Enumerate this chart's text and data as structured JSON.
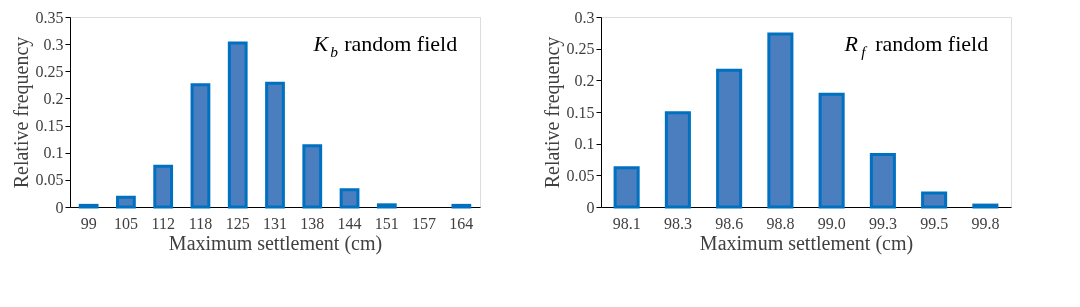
{
  "chart_data": [
    {
      "type": "bar",
      "categories": [
        "99",
        "105",
        "112",
        "118",
        "125",
        "131",
        "138",
        "144",
        "151",
        "157",
        "164"
      ],
      "values": [
        0.003,
        0.018,
        0.075,
        0.225,
        0.302,
        0.228,
        0.113,
        0.032,
        0.004,
        0.0,
        0.003
      ],
      "color": "#4a7ebf",
      "xlabel": "Maximum settlement (cm)",
      "ylabel": "Relative frequency",
      "ylim": [
        0,
        0.35
      ],
      "yticks": [
        {
          "value": 0,
          "label": "0"
        },
        0.05,
        0.1,
        0.15,
        0.2,
        0.25,
        0.3,
        0.35
      ],
      "grid": false,
      "annotations": [
        "K$_{b}$ random field"
      ]
    },
    {
      "type": "bar",
      "categories": [
        "98.1",
        "98.3",
        "98.6",
        "98.8",
        "99.0",
        "99.3",
        "99.5",
        "99.8"
      ],
      "values": [
        0.062,
        0.149,
        0.216,
        0.273,
        0.178,
        0.083,
        0.022,
        0.003
      ],
      "color": "#4a7ebf",
      "xlabel": "Maximum settlement (cm)",
      "ylabel": "Relative frequency",
      "ylim": [
        0,
        0.3
      ],
      "yticks": [
        {
          "value": 0,
          "label": "0"
        },
        0.05,
        0.1,
        0.15,
        0.2,
        0.25,
        0.3
      ],
      "grid": false,
      "annotations": [
        "R$_{f}$ random field"
      ]
    }
  ]
}
